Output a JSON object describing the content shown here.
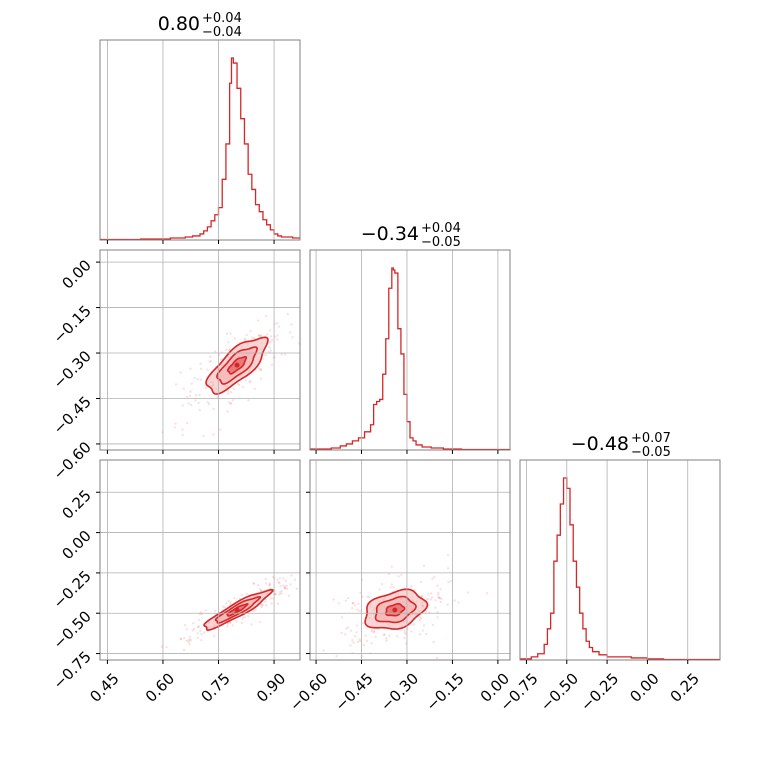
{
  "colors": {
    "accent": "#d62728",
    "grid": "#b0b0b0",
    "frame": "#808080",
    "fill": "#f4b4b4"
  },
  "chart_data": {
    "type": "corner",
    "parameters": [
      {
        "title_value": "0.80",
        "title_plus": "+0.04",
        "title_minus": "−0.04",
        "range": [
          0.43,
          0.97
        ],
        "ticks": [
          "0.45",
          "0.60",
          "0.75",
          "0.90"
        ]
      },
      {
        "title_value": "−0.34",
        "title_plus": "+0.04",
        "title_minus": "−0.05",
        "range": [
          -0.62,
          0.04
        ],
        "ticks": [
          "−0.60",
          "−0.45",
          "−0.30",
          "−0.15",
          "0.00"
        ]
      },
      {
        "title_value": "−0.48",
        "title_plus": "+0.07",
        "title_minus": "−0.05",
        "range": [
          -0.79,
          0.45
        ],
        "ticks": [
          "−0.75",
          "−0.50",
          "−0.25",
          "0.00",
          "0.25"
        ]
      }
    ],
    "y_axis_ticks": {
      "row1": [
        "0.00",
        "−0.15",
        "−0.30",
        "−0.45",
        "−0.60"
      ],
      "row2": [
        "0.25",
        "0.00",
        "−0.25",
        "−0.50",
        "−0.75"
      ]
    },
    "histograms": [
      {
        "param": 0,
        "edges": [
          0.43,
          0.5,
          0.54,
          0.58,
          0.62,
          0.66,
          0.68,
          0.7,
          0.71,
          0.72,
          0.73,
          0.74,
          0.75,
          0.76,
          0.77,
          0.78,
          0.785,
          0.79,
          0.8,
          0.81,
          0.82,
          0.83,
          0.84,
          0.85,
          0.86,
          0.87,
          0.88,
          0.89,
          0.9,
          0.91,
          0.92,
          0.95,
          0.97
        ],
        "counts": [
          0.5,
          0.5,
          1,
          1,
          2,
          3,
          4,
          6,
          9,
          13,
          19,
          25,
          32,
          60,
          95,
          155,
          180,
          175,
          150,
          120,
          95,
          65,
          50,
          35,
          28,
          20,
          15,
          10,
          6,
          4,
          3,
          2
        ]
      },
      {
        "param": 1,
        "edges": [
          -0.62,
          -0.55,
          -0.52,
          -0.5,
          -0.48,
          -0.46,
          -0.44,
          -0.42,
          -0.41,
          -0.4,
          -0.39,
          -0.38,
          -0.37,
          -0.36,
          -0.35,
          -0.345,
          -0.34,
          -0.33,
          -0.32,
          -0.31,
          -0.3,
          -0.29,
          -0.28,
          -0.27,
          -0.25,
          -0.22,
          -0.18,
          -0.12,
          0.04
        ],
        "counts": [
          1,
          2,
          4,
          6,
          9,
          12,
          18,
          25,
          45,
          48,
          50,
          75,
          110,
          160,
          180,
          178,
          175,
          120,
          95,
          55,
          28,
          12,
          9,
          5,
          3,
          2,
          1,
          0.5
        ]
      },
      {
        "param": 2,
        "edges": [
          -0.79,
          -0.72,
          -0.68,
          -0.64,
          -0.62,
          -0.6,
          -0.58,
          -0.56,
          -0.54,
          -0.52,
          -0.5,
          -0.48,
          -0.46,
          -0.44,
          -0.42,
          -0.4,
          -0.38,
          -0.36,
          -0.34,
          -0.3,
          -0.25,
          -0.2,
          -0.1,
          0.0,
          0.1,
          0.45
        ],
        "counts": [
          1,
          3,
          6,
          15,
          30,
          45,
          95,
          120,
          150,
          175,
          165,
          130,
          95,
          70,
          45,
          30,
          18,
          12,
          8,
          5,
          3,
          3,
          2,
          1,
          0.5
        ]
      }
    ],
    "scatter_panels": [
      {
        "x_param": 0,
        "y_param": 1,
        "center": [
          0.8,
          -0.34
        ],
        "sigma": [
          0.04,
          0.045
        ],
        "corr": 0.75,
        "n": 220
      },
      {
        "x_param": 0,
        "y_param": 2,
        "center": [
          0.8,
          -0.48
        ],
        "sigma": [
          0.045,
          0.06
        ],
        "corr": 0.92,
        "n": 220
      },
      {
        "x_param": 1,
        "y_param": 2,
        "center": [
          -0.34,
          -0.48
        ],
        "sigma": [
          0.05,
          0.06
        ],
        "corr": 0.3,
        "n": 220
      }
    ],
    "grid": true,
    "xlabel": "",
    "ylabel": ""
  }
}
